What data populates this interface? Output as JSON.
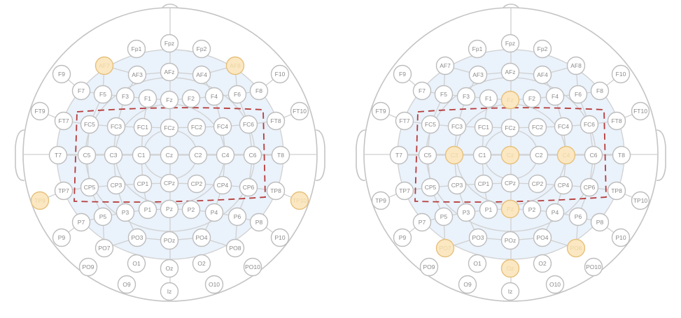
{
  "figure": {
    "accent_highlight_fill": "#fbe8c2",
    "accent_highlight_stroke": "#e6c07c",
    "roi_color": "#b63b3b",
    "montages": [
      {
        "id": "left",
        "highlighted": [
          "AF7",
          "AF8",
          "TP9",
          "TP10"
        ],
        "roi": "dashed rectangle around the FC, C and CP rows"
      },
      {
        "id": "right",
        "highlighted": [
          "Fz",
          "C3",
          "Cz",
          "C4",
          "Pz",
          "PO7",
          "PO8",
          "Oz"
        ],
        "roi": "dashed rectangle around the FC, C and CP rows"
      }
    ],
    "electrodes": [
      "Fp1",
      "Fpz",
      "Fp2",
      "AF7",
      "AF3",
      "AFz",
      "AF4",
      "AF8",
      "F9",
      "F7",
      "F5",
      "F3",
      "F1",
      "Fz",
      "F2",
      "F4",
      "F6",
      "F8",
      "F10",
      "FT9",
      "FT7",
      "FC5",
      "FC3",
      "FC1",
      "FCz",
      "FC2",
      "FC4",
      "FC6",
      "FT8",
      "FT10",
      "T7",
      "C5",
      "C3",
      "C1",
      "Cz",
      "C2",
      "C4",
      "C6",
      "T8",
      "TP9",
      "TP7",
      "CP5",
      "CP3",
      "CP1",
      "CPz",
      "CP2",
      "CP4",
      "CP6",
      "TP8",
      "TP10",
      "P9",
      "P7",
      "P5",
      "P3",
      "P1",
      "Pz",
      "P2",
      "P4",
      "P6",
      "P8",
      "P10",
      "PO9",
      "PO7",
      "PO3",
      "POz",
      "PO4",
      "PO8",
      "PO10",
      "O1",
      "Oz",
      "O2",
      "O9",
      "Iz",
      "O10"
    ]
  }
}
